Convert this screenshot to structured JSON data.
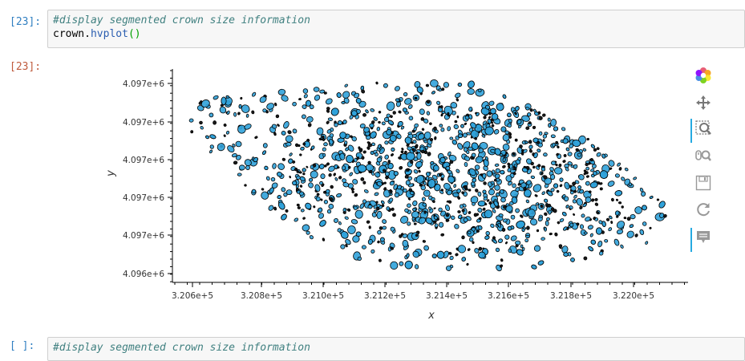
{
  "cell_in": {
    "prompt": "[23]:",
    "comment": "#display segmented crown size information",
    "code_obj": "crown",
    "code_dot": ".",
    "code_method": "hvplot",
    "code_parens": "()"
  },
  "cell_out": {
    "prompt": "[23]:"
  },
  "cell_next": {
    "prompt": "[ ]:",
    "comment": "#display segmented crown size information"
  },
  "toolbar": {
    "tools": [
      {
        "name": "bokeh-logo-icon",
        "active": false
      },
      {
        "name": "pan-icon",
        "active": false
      },
      {
        "name": "box-zoom-icon",
        "active": true
      },
      {
        "name": "wheel-zoom-icon",
        "active": false
      },
      {
        "name": "save-icon",
        "active": false
      },
      {
        "name": "reset-icon",
        "active": false
      },
      {
        "name": "hover-icon",
        "active": true
      }
    ]
  },
  "chart_data": {
    "type": "scatter",
    "xlabel": "x",
    "ylabel": "y",
    "x_ticks": [
      "3.206e+5",
      "3.208e+5",
      "3.210e+5",
      "3.212e+5",
      "3.214e+5",
      "3.216e+5",
      "3.218e+5",
      "3.220e+5"
    ],
    "y_ticks": [
      "4.097e+6",
      "4.097e+6",
      "4.097e+6",
      "4.097e+6",
      "4.097e+6",
      "4.096e+6"
    ],
    "xlim": [
      320560,
      322100
    ],
    "ylim": [
      4096550,
      4096980
    ],
    "fill_color": "#30a2da",
    "edge_color": "#000000",
    "region_outline": [
      [
        320575,
        4096900
      ],
      [
        320620,
        4096920
      ],
      [
        320720,
        4096925
      ],
      [
        320900,
        4096935
      ],
      [
        321060,
        4096950
      ],
      [
        321200,
        4096965
      ],
      [
        321350,
        4096970
      ],
      [
        321500,
        4096940
      ],
      [
        321650,
        4096900
      ],
      [
        321800,
        4096840
      ],
      [
        321950,
        4096760
      ],
      [
        322050,
        4096690
      ],
      [
        322060,
        4096660
      ],
      [
        321980,
        4096630
      ],
      [
        321820,
        4096600
      ],
      [
        321650,
        4096575
      ],
      [
        321450,
        4096560
      ],
      [
        321250,
        4096570
      ],
      [
        321050,
        4096610
      ],
      [
        320880,
        4096680
      ],
      [
        320750,
        4096760
      ],
      [
        320650,
        4096830
      ],
      [
        320580,
        4096870
      ]
    ]
  }
}
